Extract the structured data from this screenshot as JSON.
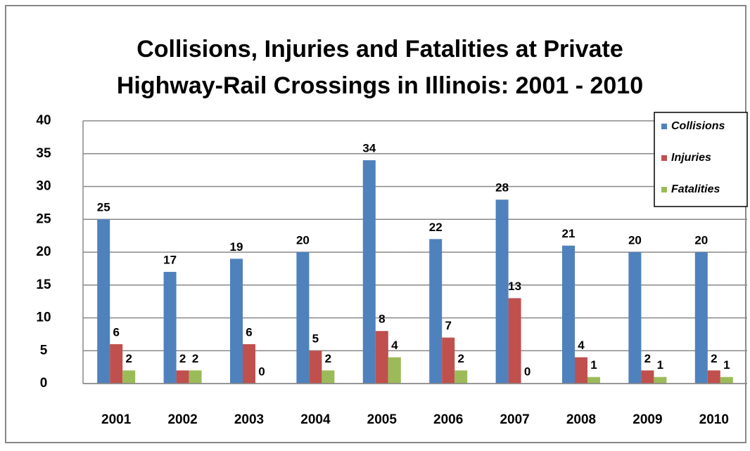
{
  "chart_data": {
    "type": "bar",
    "title": [
      "Collisions, Injuries and Fatalities at Private",
      "Highway-Rail Crossings in Illinois:  2001 - 2010"
    ],
    "categories": [
      "2001",
      "2002",
      "2003",
      "2004",
      "2005",
      "2006",
      "2007",
      "2008",
      "2009",
      "2010"
    ],
    "series": [
      {
        "name": "Collisions",
        "color": "#4f81bd",
        "values": [
          25,
          17,
          19,
          20,
          34,
          22,
          28,
          21,
          20,
          20
        ]
      },
      {
        "name": "Injuries",
        "color": "#c0504d",
        "values": [
          6,
          2,
          6,
          5,
          8,
          7,
          13,
          4,
          2,
          2
        ]
      },
      {
        "name": "Fatalities",
        "color": "#9bbb59",
        "values": [
          2,
          2,
          0,
          2,
          4,
          2,
          0,
          1,
          1,
          1
        ]
      }
    ],
    "ylim": [
      0,
      40
    ],
    "yticks": [
      0,
      5,
      10,
      15,
      20,
      25,
      30,
      35,
      40
    ],
    "grid": true,
    "legend": "upper right"
  }
}
